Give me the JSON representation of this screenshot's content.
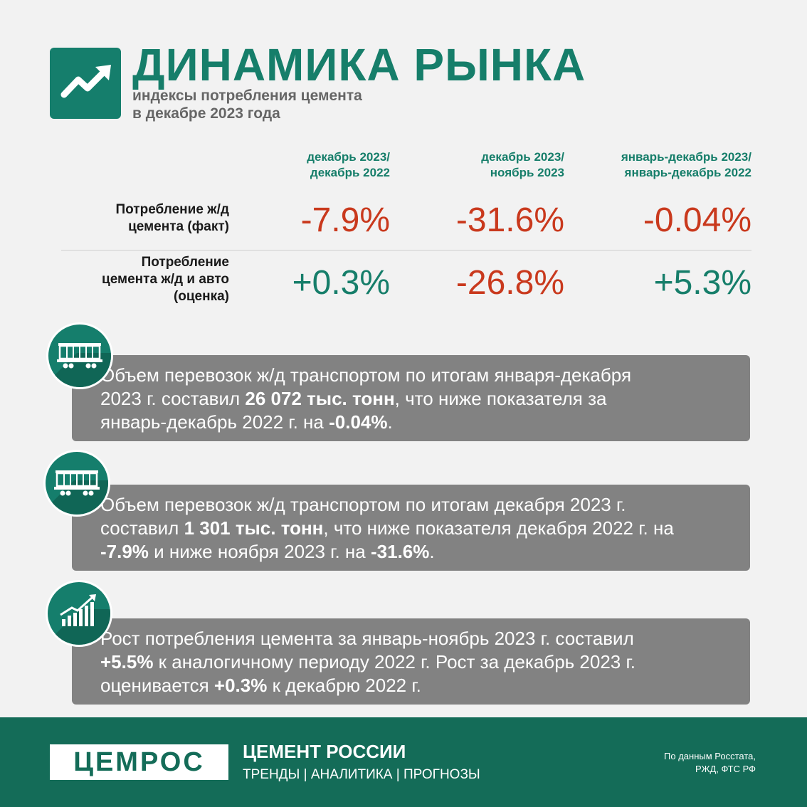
{
  "header": {
    "title": "ДИНАМИКА РЫНКА",
    "subtitle_line1": "индексы потребления цемента",
    "subtitle_line2": "в декабре 2023 года",
    "icon": "trend-up-arrow-icon"
  },
  "table": {
    "columns": [
      {
        "line1": "декабрь 2023/",
        "line2": "декабрь 2022"
      },
      {
        "line1": "декабрь 2023/",
        "line2": "ноябрь 2023"
      },
      {
        "line1": "январь-декабрь 2023/",
        "line2": "январь-декабрь 2022"
      }
    ],
    "rows": [
      {
        "label_lines": [
          "Потребление ж/д",
          "цемента (факт)"
        ],
        "values": [
          "-7.9%",
          "-31.6%",
          "-0.04%"
        ]
      },
      {
        "label_lines": [
          "Потребление",
          "цемента ж/д и авто",
          "(оценка)"
        ],
        "values": [
          "+0.3%",
          "-26.8%",
          "+5.3%"
        ]
      }
    ]
  },
  "cards": [
    {
      "icon": "railcar-icon",
      "line1": "Объем перевозок ж/д транспортом по итогам января-декабря",
      "line2_pre": "2023 г. составил ",
      "line2_bold": "26 072 тыс. тонн",
      "line2_post": ", что ниже показателя за",
      "line3_pre": "январь-декабрь 2022 г. на ",
      "line3_bold": "-0.04%",
      "line3_post": "."
    },
    {
      "icon": "railcar-icon",
      "line1": "Объем перевозок ж/д транспортом по итогам декабря 2023 г.",
      "line2_pre": "составил ",
      "line2_bold": "1 301 тыс. тонн",
      "line2_post": ", что ниже показателя декабря 2022 г. на",
      "line3_bold1": "-7.9%",
      "line3_mid": " и ниже ноября 2023 г. на ",
      "line3_bold2": "-31.6%",
      "line3_post": "."
    },
    {
      "icon": "growth-chart-icon",
      "line1": "Рост потребления цемента за январь-ноябрь 2023 г. составил",
      "line2_bold": "+5.5%",
      "line2_post": " к аналогичному периоду 2022 г. Рост за декабрь 2023 г.",
      "line3_pre": "оценивается ",
      "line3_bold": "+0.3%",
      "line3_post": " к декабрю 2022 г."
    }
  ],
  "footer": {
    "brand": "ЦЕМРОС",
    "title": "ЦЕМЕНТ РОССИИ",
    "tagline": "ТРЕНДЫ | АНАЛИТИКА | ПРОГНОЗЫ",
    "source_line1": "По данным Росстата,",
    "source_line2": "РЖД, ФТС РФ"
  },
  "colors": {
    "brand_green": "#167e6a",
    "negative": "#c9391d",
    "card_gray": "#828282",
    "footer_green": "#146c58"
  }
}
